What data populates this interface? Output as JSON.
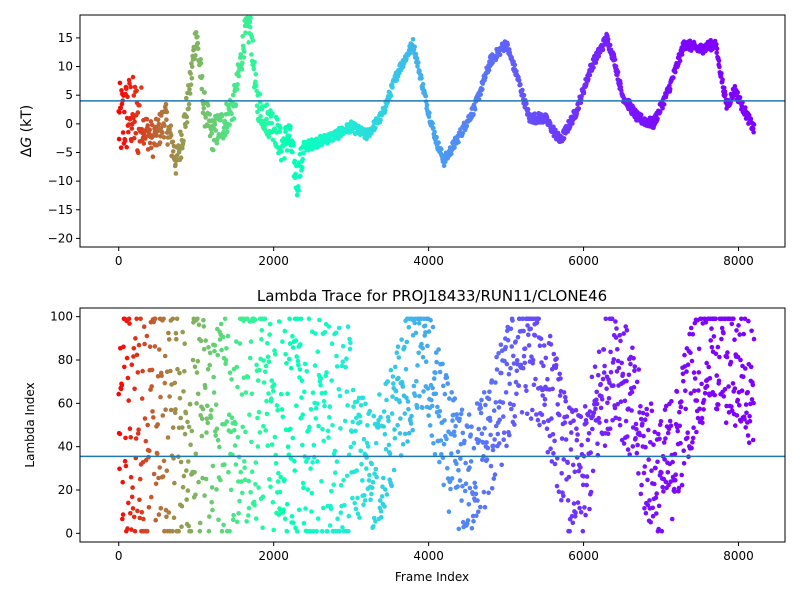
{
  "chart_data": [
    {
      "type": "scatter",
      "title": "",
      "xlabel": "",
      "ylabel": "ΔG (kT)",
      "ylabel_parts": [
        "Δ",
        "G",
        " (kT)"
      ],
      "xlim": [
        -500,
        8600
      ],
      "ylim": [
        -21.5,
        19
      ],
      "xticks": [
        0,
        2000,
        4000,
        6000,
        8000
      ],
      "yticks": [
        -20,
        -15,
        -10,
        -5,
        0,
        5,
        10,
        15
      ],
      "xtick_labels": [
        "0",
        "2000",
        "4000",
        "6000",
        "8000"
      ],
      "ytick_labels": [
        "−20",
        "−15",
        "−10",
        "−5",
        "0",
        "5",
        "10",
        "15"
      ],
      "hline": 4,
      "hline_color": "#1f77b4",
      "colormap": "rainbow",
      "color_by": "frame_index_reversed",
      "frame_count": 8200,
      "trace_knots": [
        [
          -500,
          0
        ],
        [
          0,
          0
        ],
        [
          150,
          2
        ],
        [
          300,
          0
        ],
        [
          450,
          -3
        ],
        [
          600,
          1
        ],
        [
          750,
          -7
        ],
        [
          900,
          4
        ],
        [
          1000,
          16
        ],
        [
          1100,
          3
        ],
        [
          1200,
          -2
        ],
        [
          1350,
          0
        ],
        [
          1500,
          4
        ],
        [
          1620,
          15
        ],
        [
          1700,
          17
        ],
        [
          1780,
          4
        ],
        [
          1900,
          1
        ],
        [
          2000,
          0
        ],
        [
          2100,
          -4
        ],
        [
          2200,
          -2
        ],
        [
          2300,
          -10
        ],
        [
          2400,
          -4
        ],
        [
          2600,
          -3
        ],
        [
          2800,
          -2
        ],
        [
          3000,
          -0.5
        ],
        [
          3200,
          -2
        ],
        [
          3400,
          1.5
        ],
        [
          3600,
          9
        ],
        [
          3800,
          14
        ],
        [
          3900,
          8
        ],
        [
          4000,
          2
        ],
        [
          4100,
          -3
        ],
        [
          4200,
          -6.5
        ],
        [
          4400,
          -2
        ],
        [
          4600,
          3
        ],
        [
          4800,
          11
        ],
        [
          5000,
          14
        ],
        [
          5150,
          8
        ],
        [
          5300,
          1
        ],
        [
          5500,
          1
        ],
        [
          5700,
          -3
        ],
        [
          5900,
          2
        ],
        [
          6100,
          10
        ],
        [
          6300,
          15
        ],
        [
          6400,
          11
        ],
        [
          6500,
          5
        ],
        [
          6700,
          1
        ],
        [
          6900,
          0
        ],
        [
          7100,
          6
        ],
        [
          7300,
          14
        ],
        [
          7500,
          13
        ],
        [
          7700,
          14
        ],
        [
          7850,
          3
        ],
        [
          7950,
          6
        ],
        [
          8050,
          3
        ],
        [
          8200,
          -1
        ]
      ]
    },
    {
      "type": "scatter",
      "title": "Lambda Trace for PROJ18433/RUN11/CLONE46",
      "xlabel": "Frame Index",
      "ylabel": "Lambda Index",
      "xlim": [
        -500,
        8600
      ],
      "ylim": [
        -4,
        104
      ],
      "xticks": [
        0,
        2000,
        4000,
        6000,
        8000
      ],
      "yticks": [
        0,
        20,
        40,
        60,
        80,
        100
      ],
      "xtick_labels": [
        "0",
        "2000",
        "4000",
        "6000",
        "8000"
      ],
      "ytick_labels": [
        "0",
        "20",
        "40",
        "60",
        "80",
        "100"
      ],
      "hline": 35.5,
      "hline_color": "#1f77b4",
      "colormap": "rainbow",
      "color_by": "frame_index_reversed",
      "frame_count": 8200,
      "trace_knots": [
        [
          0,
          50
        ],
        [
          500,
          50
        ],
        [
          1000,
          50
        ],
        [
          1500,
          50
        ],
        [
          1700,
          60
        ],
        [
          2000,
          55
        ],
        [
          2500,
          45
        ],
        [
          3000,
          40
        ],
        [
          3300,
          30
        ],
        [
          3500,
          45
        ],
        [
          3700,
          70
        ],
        [
          3900,
          85
        ],
        [
          4100,
          60
        ],
        [
          4300,
          35
        ],
        [
          4500,
          25
        ],
        [
          4800,
          45
        ],
        [
          5000,
          65
        ],
        [
          5200,
          85
        ],
        [
          5400,
          80
        ],
        [
          5600,
          60
        ],
        [
          5800,
          30
        ],
        [
          6000,
          25
        ],
        [
          6200,
          60
        ],
        [
          6400,
          85
        ],
        [
          6600,
          60
        ],
        [
          6800,
          35
        ],
        [
          7000,
          25
        ],
        [
          7200,
          40
        ],
        [
          7400,
          70
        ],
        [
          7600,
          85
        ],
        [
          7800,
          80
        ],
        [
          8000,
          75
        ],
        [
          8200,
          70
        ]
      ]
    }
  ]
}
